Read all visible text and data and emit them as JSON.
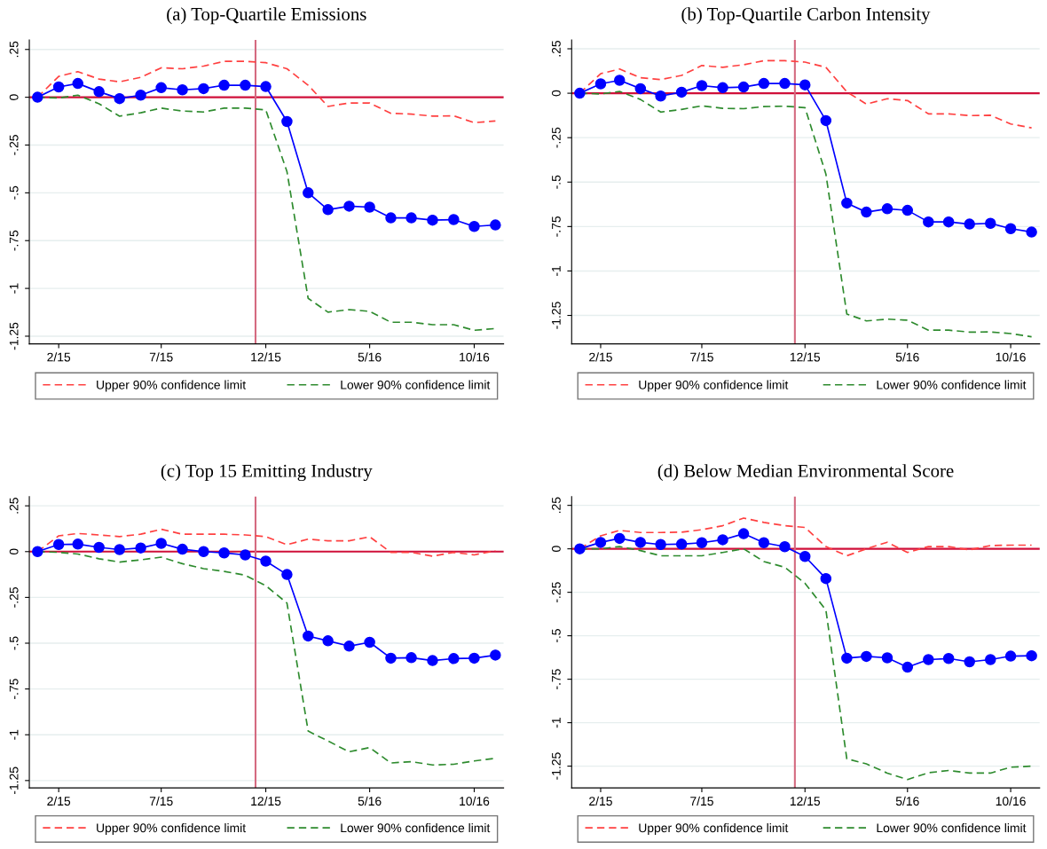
{
  "chart_data": [
    {
      "type": "line",
      "title": "(a) Top-Quartile Emissions",
      "x": [
        "2015-01",
        "2015-02",
        "2015-03",
        "2015-04",
        "2015-05",
        "2015-06",
        "2015-07",
        "2015-08",
        "2015-09",
        "2015-10",
        "2015-11",
        "2015-12",
        "2016-01",
        "2016-02",
        "2016-03",
        "2016-04",
        "2016-05",
        "2016-06",
        "2016-07",
        "2016-08",
        "2016-09",
        "2016-10",
        "2016-11"
      ],
      "xlim": [
        "2014-12-20",
        "2016-11-13"
      ],
      "xticks": [
        {
          "value": "2015-02",
          "label": "2/15"
        },
        {
          "value": "2015-07",
          "label": "7/15"
        },
        {
          "value": "2015-12",
          "label": "12/15"
        },
        {
          "value": "2016-05",
          "label": "5/16"
        },
        {
          "value": "2016-10",
          "label": "10/16"
        }
      ],
      "ylim": [
        -1.29,
        0.3
      ],
      "yticks": [
        {
          "value": 0.25,
          "label": ".25"
        },
        0,
        {
          "value": -0.25,
          "label": "-.25"
        },
        {
          "value": -0.5,
          "label": "-.5"
        },
        {
          "value": -0.75,
          "label": "-.75"
        },
        -1,
        {
          "value": -1.25,
          "label": "-1.25"
        }
      ],
      "grid": "y",
      "legend": "bottom",
      "ref_lines": [
        {
          "axis": "y",
          "value": 0,
          "color": "#d0103a"
        },
        {
          "axis": "x",
          "value": "2015-11-16",
          "color": "#d46a80"
        }
      ],
      "series": [
        {
          "color": "#0000ff",
          "marker": "circle",
          "line_style": "solid",
          "values": [
            0,
            0.054,
            0.072,
            0.029,
            -0.007,
            0.011,
            0.05,
            0.039,
            0.045,
            0.063,
            0.063,
            0.056,
            -0.127,
            -0.5,
            -0.588,
            -0.57,
            -0.575,
            -0.631,
            -0.631,
            -0.643,
            -0.64,
            -0.676,
            -0.668
          ]
        },
        {
          "name": "Upper 90% confidence limit",
          "color": "#ff4040",
          "marker": "none",
          "line_style": "dashed",
          "values": [
            0,
            0.109,
            0.134,
            0.095,
            0.081,
            0.104,
            0.154,
            0.149,
            0.163,
            0.188,
            0.188,
            0.181,
            0.149,
            0.063,
            -0.048,
            -0.03,
            -0.03,
            -0.084,
            -0.088,
            -0.099,
            -0.097,
            -0.133,
            -0.124
          ]
        },
        {
          "name": "Lower 90% confidence limit",
          "color": "#2e8b2e",
          "marker": "none",
          "line_style": "dashed",
          "values": [
            0,
            -0.004,
            0.011,
            -0.034,
            -0.099,
            -0.081,
            -0.057,
            -0.072,
            -0.077,
            -0.057,
            -0.057,
            -0.066,
            -0.389,
            -1.052,
            -1.124,
            -1.111,
            -1.12,
            -1.177,
            -1.177,
            -1.19,
            -1.19,
            -1.219,
            -1.21
          ]
        }
      ]
    },
    {
      "type": "line",
      "title": "(b) Top-Quartile Carbon Intensity",
      "x": [
        "2015-01",
        "2015-02",
        "2015-03",
        "2015-04",
        "2015-05",
        "2015-06",
        "2015-07",
        "2015-08",
        "2015-09",
        "2015-10",
        "2015-11",
        "2015-12",
        "2016-01",
        "2016-02",
        "2016-03",
        "2016-04",
        "2016-05",
        "2016-06",
        "2016-07",
        "2016-08",
        "2016-09",
        "2016-10",
        "2016-11"
      ],
      "xlim": [
        "2014-12-20",
        "2016-11-13"
      ],
      "xticks": [
        {
          "value": "2015-02",
          "label": "2/15"
        },
        {
          "value": "2015-07",
          "label": "7/15"
        },
        {
          "value": "2015-12",
          "label": "12/15"
        },
        {
          "value": "2016-05",
          "label": "5/16"
        },
        {
          "value": "2016-10",
          "label": "10/16"
        }
      ],
      "ylim": [
        -1.41,
        0.3
      ],
      "yticks": [
        {
          "value": 0.25,
          "label": ".25"
        },
        0,
        {
          "value": -0.25,
          "label": "-.25"
        },
        {
          "value": -0.5,
          "label": "-.5"
        },
        {
          "value": -0.75,
          "label": "-.75"
        },
        -1,
        {
          "value": -1.25,
          "label": "-1.25"
        }
      ],
      "grid": "y",
      "legend": "bottom",
      "ref_lines": [
        {
          "axis": "y",
          "value": 0,
          "color": "#d0103a"
        },
        {
          "axis": "x",
          "value": "2015-11-16",
          "color": "#d46a80"
        }
      ],
      "series": [
        {
          "color": "#0000ff",
          "marker": "circle",
          "line_style": "solid",
          "values": [
            0,
            0.053,
            0.073,
            0.026,
            -0.016,
            0.006,
            0.043,
            0.031,
            0.035,
            0.055,
            0.055,
            0.047,
            -0.154,
            -0.618,
            -0.669,
            -0.65,
            -0.659,
            -0.724,
            -0.724,
            -0.736,
            -0.732,
            -0.762,
            -0.781
          ]
        },
        {
          "name": "Upper 90% confidence limit",
          "color": "#ff4040",
          "marker": "none",
          "line_style": "dashed",
          "values": [
            0,
            0.11,
            0.136,
            0.087,
            0.077,
            0.1,
            0.156,
            0.146,
            0.16,
            0.183,
            0.183,
            0.175,
            0.146,
            0.008,
            -0.061,
            -0.031,
            -0.041,
            -0.116,
            -0.116,
            -0.126,
            -0.124,
            -0.173,
            -0.195
          ]
        },
        {
          "name": "Lower 90% confidence limit",
          "color": "#2e8b2e",
          "marker": "none",
          "line_style": "dashed",
          "values": [
            0,
            -0.004,
            0.01,
            -0.035,
            -0.106,
            -0.091,
            -0.071,
            -0.085,
            -0.087,
            -0.075,
            -0.073,
            -0.081,
            -0.455,
            -1.242,
            -1.281,
            -1.271,
            -1.277,
            -1.333,
            -1.333,
            -1.344,
            -1.343,
            -1.352,
            -1.37
          ]
        }
      ]
    },
    {
      "type": "line",
      "title": "(c) Top 15 Emitting Industry",
      "x": [
        "2015-01",
        "2015-02",
        "2015-03",
        "2015-04",
        "2015-05",
        "2015-06",
        "2015-07",
        "2015-08",
        "2015-09",
        "2015-10",
        "2015-11",
        "2015-12",
        "2016-01",
        "2016-02",
        "2016-03",
        "2016-04",
        "2016-05",
        "2016-06",
        "2016-07",
        "2016-08",
        "2016-09",
        "2016-10",
        "2016-11"
      ],
      "xlim": [
        "2014-12-20",
        "2016-11-13"
      ],
      "xticks": [
        {
          "value": "2015-02",
          "label": "2/15"
        },
        {
          "value": "2015-07",
          "label": "7/15"
        },
        {
          "value": "2015-12",
          "label": "12/15"
        },
        {
          "value": "2016-05",
          "label": "5/16"
        },
        {
          "value": "2016-10",
          "label": "10/16"
        }
      ],
      "ylim": [
        -1.29,
        0.3
      ],
      "yticks": [
        {
          "value": 0.25,
          "label": ".25"
        },
        0,
        {
          "value": -0.25,
          "label": "-.25"
        },
        {
          "value": -0.5,
          "label": "-.5"
        },
        {
          "value": -0.75,
          "label": "-.75"
        },
        -1,
        {
          "value": -1.25,
          "label": "-1.25"
        }
      ],
      "grid": "y",
      "legend": "bottom",
      "ref_lines": [
        {
          "axis": "y",
          "value": 0,
          "color": "#d0103a"
        },
        {
          "axis": "x",
          "value": "2015-11-16",
          "color": "#d46a80"
        }
      ],
      "series": [
        {
          "color": "#0000ff",
          "marker": "circle",
          "line_style": "solid",
          "values": [
            0,
            0.039,
            0.041,
            0.023,
            0.011,
            0.02,
            0.045,
            0.013,
            0,
            -0.007,
            -0.018,
            -0.052,
            -0.125,
            -0.461,
            -0.487,
            -0.516,
            -0.495,
            -0.582,
            -0.579,
            -0.595,
            -0.584,
            -0.582,
            -0.565
          ]
        },
        {
          "name": "Upper 90% confidence limit",
          "color": "#ff4040",
          "marker": "none",
          "line_style": "dashed",
          "values": [
            0,
            0.086,
            0.099,
            0.091,
            0.082,
            0.095,
            0.122,
            0.095,
            0.095,
            0.095,
            0.091,
            0.082,
            0.038,
            0.068,
            0.059,
            0.059,
            0.081,
            -0.004,
            -0.004,
            -0.025,
            -0.004,
            -0.018,
            0.005
          ]
        },
        {
          "name": "Lower 90% confidence limit",
          "color": "#2e8b2e",
          "marker": "none",
          "line_style": "dashed",
          "values": [
            0,
            -0.004,
            -0.013,
            -0.039,
            -0.057,
            -0.045,
            -0.03,
            -0.066,
            -0.093,
            -0.108,
            -0.129,
            -0.186,
            -0.281,
            -0.98,
            -1.034,
            -1.093,
            -1.07,
            -1.154,
            -1.147,
            -1.165,
            -1.161,
            -1.143,
            -1.129
          ]
        }
      ]
    },
    {
      "type": "line",
      "title": "(d) Below Median Environmental Score",
      "x": [
        "2015-01",
        "2015-02",
        "2015-03",
        "2015-04",
        "2015-05",
        "2015-06",
        "2015-07",
        "2015-08",
        "2015-09",
        "2015-10",
        "2015-11",
        "2015-12",
        "2016-01",
        "2016-02",
        "2016-03",
        "2016-04",
        "2016-05",
        "2016-06",
        "2016-07",
        "2016-08",
        "2016-09",
        "2016-10",
        "2016-11"
      ],
      "xlim": [
        "2014-12-20",
        "2016-11-13"
      ],
      "xticks": [
        {
          "value": "2015-02",
          "label": "2/15"
        },
        {
          "value": "2015-07",
          "label": "7/15"
        },
        {
          "value": "2015-12",
          "label": "12/15"
        },
        {
          "value": "2016-05",
          "label": "5/16"
        },
        {
          "value": "2016-10",
          "label": "10/16"
        }
      ],
      "ylim": [
        -1.375,
        0.3
      ],
      "yticks": [
        {
          "value": 0.25,
          "label": ".25"
        },
        0,
        {
          "value": -0.25,
          "label": "-.25"
        },
        {
          "value": -0.5,
          "label": "-.5"
        },
        {
          "value": -0.75,
          "label": "-.75"
        },
        -1,
        {
          "value": -1.25,
          "label": "-1.25"
        }
      ],
      "grid": "y",
      "legend": "bottom",
      "ref_lines": [
        {
          "axis": "y",
          "value": 0,
          "color": "#d0103a"
        },
        {
          "axis": "x",
          "value": "2015-11-16",
          "color": "#d46a80"
        }
      ],
      "series": [
        {
          "color": "#0000ff",
          "marker": "circle",
          "line_style": "solid",
          "values": [
            0,
            0.037,
            0.06,
            0.037,
            0.025,
            0.027,
            0.035,
            0.052,
            0.087,
            0.035,
            0.012,
            -0.044,
            -0.171,
            -0.629,
            -0.619,
            -0.627,
            -0.681,
            -0.637,
            -0.631,
            -0.65,
            -0.637,
            -0.617,
            -0.615
          ]
        },
        {
          "name": "Upper 90% confidence limit",
          "color": "#ff4040",
          "marker": "none",
          "line_style": "dashed",
          "values": [
            0,
            0.075,
            0.106,
            0.094,
            0.094,
            0.096,
            0.11,
            0.133,
            0.177,
            0.152,
            0.133,
            0.123,
            0.013,
            -0.04,
            0,
            0.038,
            -0.021,
            0.013,
            0.013,
            -0.006,
            0.019,
            0.021,
            0.021
          ]
        },
        {
          "name": "Lower 90% confidence limit",
          "color": "#2e8b2e",
          "marker": "none",
          "line_style": "dashed",
          "values": [
            0,
            0,
            0.013,
            -0.01,
            -0.04,
            -0.04,
            -0.04,
            -0.021,
            0,
            -0.073,
            -0.106,
            -0.198,
            -0.352,
            -1.208,
            -1.237,
            -1.29,
            -1.327,
            -1.288,
            -1.275,
            -1.29,
            -1.29,
            -1.256,
            -1.25
          ]
        }
      ]
    }
  ]
}
